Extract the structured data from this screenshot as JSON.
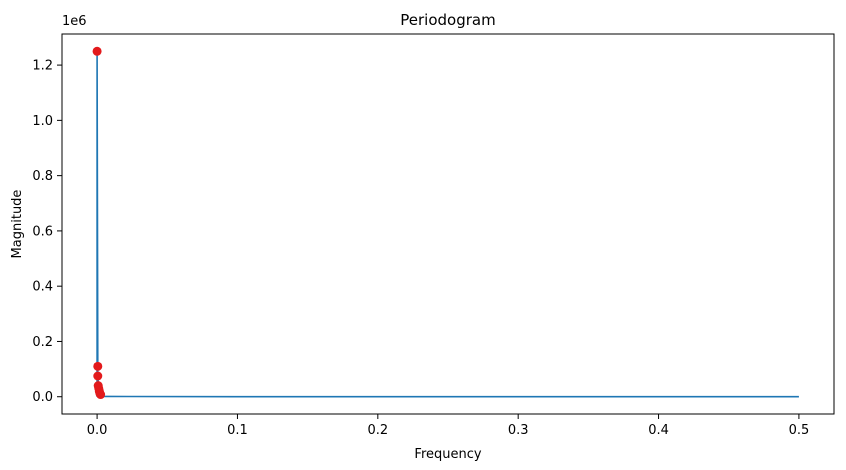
{
  "chart_data": {
    "type": "line",
    "title": "Periodogram",
    "xlabel": "Frequency",
    "ylabel": "Magnitude",
    "offset_text": "1e6",
    "xlim": [
      -0.025,
      0.525
    ],
    "ylim": [
      -0.0625,
      1.3125
    ],
    "x_ticks": [
      0.0,
      0.1,
      0.2,
      0.3,
      0.4,
      0.5
    ],
    "x_tick_labels": [
      "0.0",
      "0.1",
      "0.2",
      "0.3",
      "0.4",
      "0.5"
    ],
    "y_ticks": [
      0.0,
      0.2,
      0.4,
      0.6,
      0.8,
      1.0,
      1.2
    ],
    "y_tick_labels": [
      "0.0",
      "0.2",
      "0.4",
      "0.6",
      "0.8",
      "1.0",
      "1.2"
    ],
    "grid": false,
    "colors": {
      "line": "#1f77b4",
      "peaks": "#e31a1c"
    },
    "series": [
      {
        "x": [
          0.0,
          0.0,
          0.0005,
          0.0005,
          0.001,
          0.001,
          0.0015,
          0.002,
          0.0025,
          0.003,
          0.005,
          0.1,
          0.2,
          0.3,
          0.4,
          0.5
        ],
        "y": [
          0.0,
          1.25,
          0.11,
          0.075,
          0.04,
          0.03,
          0.02,
          0.015,
          0.01,
          0.005,
          0.001,
          0.0,
          0.0,
          0.0,
          0.0,
          0.0
        ]
      }
    ],
    "peaks": {
      "x": [
        0.0,
        0.0005,
        0.0005,
        0.0008,
        0.0012,
        0.0016,
        0.002,
        0.0025
      ],
      "y": [
        1.25,
        0.11,
        0.075,
        0.04,
        0.03,
        0.02,
        0.012,
        0.008
      ]
    }
  }
}
